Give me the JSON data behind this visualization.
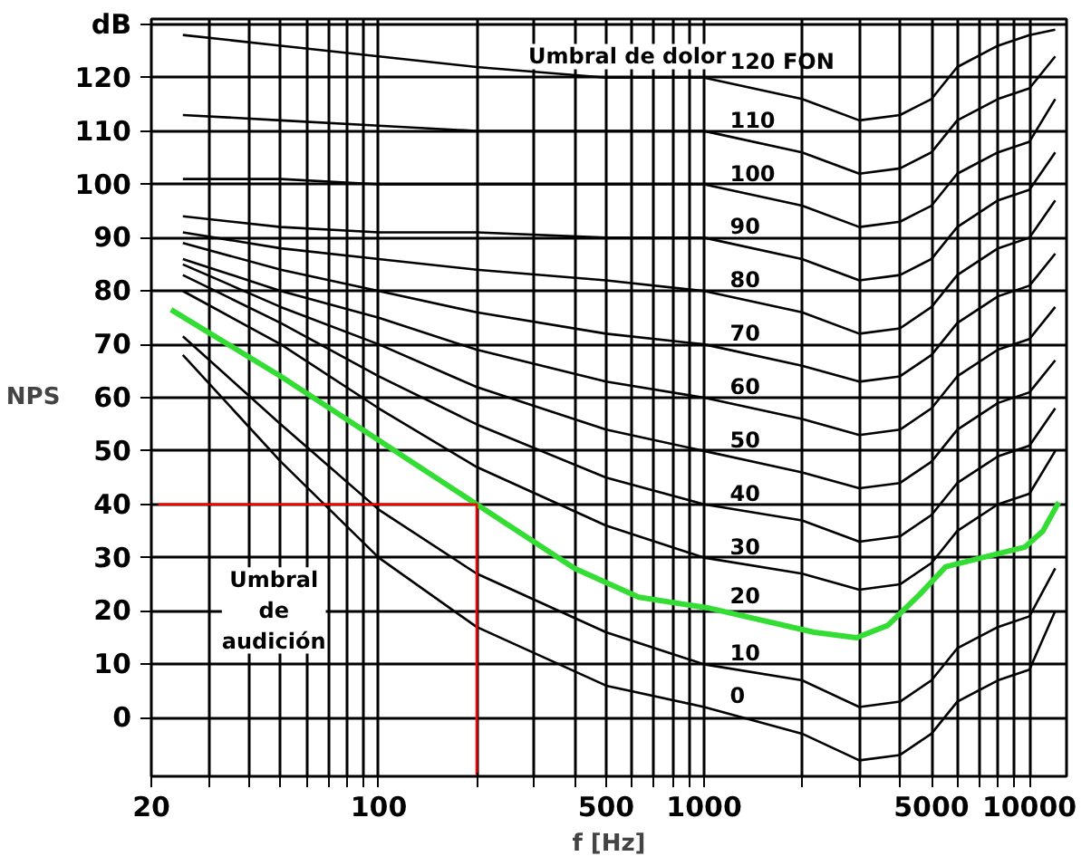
{
  "chart_data": {
    "type": "line",
    "xlabel": "f [Hz]",
    "ylabel": "NPS",
    "log": "x",
    "grid": true,
    "xlim": [
      20,
      13000
    ],
    "ylim": [
      -11,
      131
    ],
    "xticks": [
      20,
      {
        "value": 30,
        "label": null
      },
      {
        "value": 40,
        "label": null
      },
      {
        "value": 50,
        "label": null
      },
      {
        "value": 60,
        "label": null
      },
      {
        "value": 70,
        "label": null
      },
      {
        "value": 80,
        "label": null
      },
      {
        "value": 90,
        "label": null
      },
      100,
      {
        "value": 200,
        "label": null
      },
      {
        "value": 300,
        "label": null
      },
      {
        "value": 400,
        "label": null
      },
      500,
      {
        "value": 600,
        "label": null
      },
      {
        "value": 700,
        "label": null
      },
      {
        "value": 800,
        "label": null
      },
      {
        "value": 900,
        "label": null
      },
      1000,
      {
        "value": 2000,
        "label": null
      },
      {
        "value": 3000,
        "label": null
      },
      {
        "value": 4000,
        "label": null
      },
      5000,
      {
        "value": 6000,
        "label": null
      },
      {
        "value": 7000,
        "label": null
      },
      {
        "value": 8000,
        "label": null
      },
      {
        "value": 9000,
        "label": null
      },
      10000
    ],
    "yticks": [
      0,
      10,
      20,
      30,
      40,
      50,
      60,
      70,
      80,
      90,
      100,
      110,
      120,
      {
        "value": 130,
        "label": "dB"
      }
    ],
    "x": [
      25,
      50,
      100,
      200,
      500,
      1000,
      2000,
      3000,
      4000,
      5000,
      6000,
      8000,
      10000,
      12000
    ],
    "series": [
      {
        "name": "0",
        "color": "#000000",
        "values": [
          68,
          48,
          30,
          17,
          6,
          2,
          -3,
          -8,
          -7,
          -3,
          3,
          7,
          9,
          20
        ]
      },
      {
        "name": "10",
        "color": "#000000",
        "values": [
          71.5,
          55,
          39,
          27,
          16,
          10,
          7,
          2,
          3,
          7,
          13,
          17,
          19,
          28
        ]
      },
      {
        "name": "20",
        "color": "#33dd33",
        "x": [
          23,
          50,
          100,
          200,
          400,
          630,
          1045,
          2180,
          2940,
          3670,
          4580,
          5530,
          7150,
          9700,
          11000,
          12300
        ],
        "values": [
          76.5,
          64,
          52,
          40,
          28,
          22.6,
          20.5,
          16,
          15,
          17.3,
          23,
          28.3,
          30,
          32,
          35,
          40.4
        ]
      },
      {
        "name": "30",
        "color": "#000000",
        "values": [
          80,
          70,
          58,
          47,
          36,
          30,
          27,
          24,
          25,
          29,
          35,
          40,
          42,
          50
        ]
      },
      {
        "name": "40",
        "color": "#000000",
        "values": [
          83,
          74,
          64,
          55,
          45,
          40,
          37,
          33,
          34,
          38,
          44,
          49,
          51,
          58
        ]
      },
      {
        "name": "50",
        "color": "#000000",
        "values": [
          85,
          77,
          70,
          62,
          54,
          50,
          46,
          43,
          44,
          48,
          54,
          59,
          61,
          67
        ]
      },
      {
        "name": "60",
        "color": "#000000",
        "values": [
          86,
          80,
          75,
          69,
          63,
          60,
          56,
          53,
          54,
          58,
          64,
          69,
          71,
          77
        ]
      },
      {
        "name": "70",
        "color": "#000000",
        "values": [
          89,
          84,
          80,
          76,
          72,
          70,
          66,
          63,
          64,
          68,
          74,
          79,
          81,
          87
        ]
      },
      {
        "name": "80",
        "color": "#000000",
        "values": [
          91,
          88,
          86,
          84,
          82,
          80,
          76,
          72,
          73,
          77,
          83,
          88,
          90,
          97
        ]
      },
      {
        "name": "90",
        "color": "#000000",
        "values": [
          94,
          92,
          91,
          91,
          90,
          90,
          86,
          82,
          83,
          86,
          92,
          97,
          99,
          106
        ]
      },
      {
        "name": "100",
        "color": "#000000",
        "values": [
          101,
          101,
          100,
          100,
          100,
          100,
          96,
          92,
          93,
          96,
          102,
          106,
          108,
          116
        ]
      },
      {
        "name": "110",
        "color": "#000000",
        "values": [
          113,
          112,
          111,
          110,
          110,
          110,
          106,
          102,
          103,
          106,
          112,
          116,
          118,
          124
        ]
      },
      {
        "name": "120 FON",
        "color": "#000000",
        "values": [
          128,
          126,
          124,
          122,
          120,
          120,
          116,
          112,
          113,
          116,
          122,
          126,
          128,
          129
        ]
      },
      {
        "color": "#ff0000",
        "x": [
          21,
          200,
          200
        ],
        "values": [
          40,
          40,
          -11
        ]
      }
    ],
    "annotations": [
      "Umbral de dolor",
      "Umbral\nde\naudición"
    ]
  }
}
